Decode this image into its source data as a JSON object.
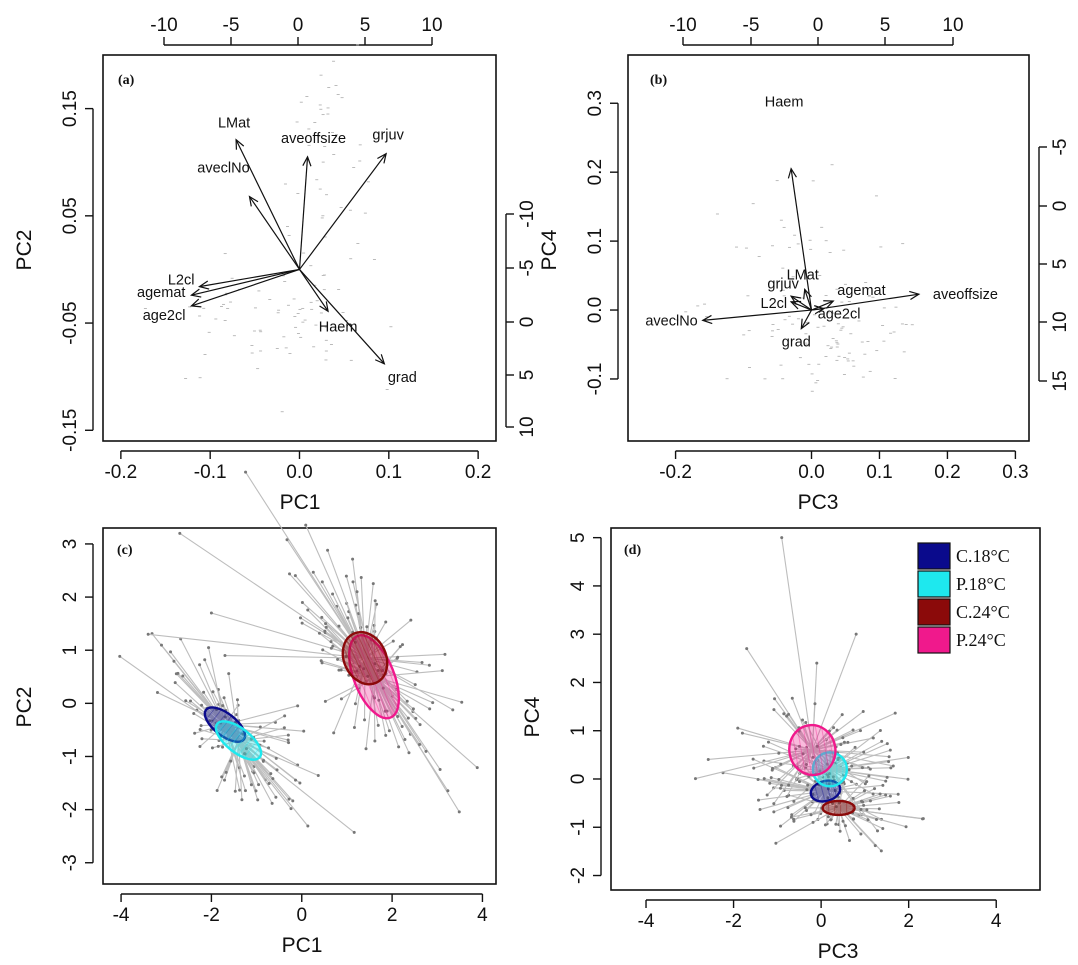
{
  "figure": {
    "panels": [
      "(a)",
      "(b)",
      "(c)",
      "(d)"
    ]
  },
  "chart_data": [
    {
      "type": "scatter",
      "subtype": "biplot",
      "panel": "(a)",
      "xlabel": "PC1",
      "ylabel": "PC2",
      "xlim": [
        -0.22,
        0.22
      ],
      "ylim": [
        -0.16,
        0.2
      ],
      "x_ticks": [
        "-0.2",
        "-0.1",
        "0.0",
        "0.1",
        "0.2"
      ],
      "y_ticks": [
        "-0.15",
        "-0.05",
        "0.05",
        "0.15"
      ],
      "top_ticks": [
        "-10",
        "-5",
        "0",
        "5",
        "10"
      ],
      "right_ticks": [
        "-10",
        "-5",
        "0",
        "5",
        "10"
      ],
      "loadings": [
        {
          "label": "LMat",
          "x": -0.071,
          "y": 0.121
        },
        {
          "label": "aveoffsize",
          "x": 0.009,
          "y": 0.105
        },
        {
          "label": "grjuv",
          "x": 0.097,
          "y": 0.108
        },
        {
          "label": "aveclNo",
          "x": -0.056,
          "y": 0.068
        },
        {
          "label": "L2cl",
          "x": -0.112,
          "y": -0.016
        },
        {
          "label": "agemat",
          "x": -0.121,
          "y": -0.024
        },
        {
          "label": "age2cl",
          "x": -0.121,
          "y": -0.034
        },
        {
          "label": "Haem",
          "x": 0.032,
          "y": -0.039
        },
        {
          "label": "grad",
          "x": 0.095,
          "y": -0.088
        }
      ]
    },
    {
      "type": "scatter",
      "subtype": "biplot",
      "panel": "(b)",
      "xlabel": "PC3",
      "ylabel": "PC4",
      "xlim": [
        -0.27,
        0.32
      ],
      "ylim": [
        -0.19,
        0.37
      ],
      "x_ticks": [
        "-0.2",
        "0.0",
        "0.1",
        "0.2",
        "0.3"
      ],
      "y_ticks": [
        "-0.1",
        "0.0",
        "0.1",
        "0.2",
        "0.3"
      ],
      "top_ticks": [
        "-10",
        "-5",
        "0",
        "5",
        "10"
      ],
      "right_ticks": [
        "-5",
        "0",
        "5",
        "10",
        "15"
      ],
      "loadings": [
        {
          "label": "Haem",
          "x": -0.03,
          "y": 0.205
        },
        {
          "label": "LMat",
          "x": -0.01,
          "y": 0.03
        },
        {
          "label": "grjuv",
          "x": -0.03,
          "y": 0.02
        },
        {
          "label": "L2cl",
          "x": -0.03,
          "y": 0.012
        },
        {
          "label": "agemat",
          "x": 0.032,
          "y": 0.013
        },
        {
          "label": "age2cl",
          "x": 0.018,
          "y": 0.002
        },
        {
          "label": "aveoffsize",
          "x": 0.158,
          "y": 0.023
        },
        {
          "label": "aveclNo",
          "x": -0.16,
          "y": -0.015
        },
        {
          "label": "grad",
          "x": -0.015,
          "y": -0.027
        }
      ]
    },
    {
      "type": "scatter",
      "subtype": "spider plot with 95% ellipses",
      "panel": "(c)",
      "xlabel": "PC1",
      "ylabel": "PC2",
      "xlim": [
        -4.4,
        4.3
      ],
      "ylim": [
        -3.4,
        3.3
      ],
      "x_ticks": [
        "-4",
        "-2",
        "0",
        "2",
        "4"
      ],
      "y_ticks": [
        "-3",
        "-2",
        "-1",
        "0",
        "1",
        "2",
        "3"
      ],
      "groups": [
        {
          "name": "C.18°C",
          "centroid": [
            -1.7,
            -0.4
          ]
        },
        {
          "name": "P.18°C",
          "centroid": [
            -1.4,
            -0.7
          ]
        },
        {
          "name": "C.24°C",
          "centroid": [
            1.4,
            0.85
          ]
        },
        {
          "name": "P.24°C",
          "centroid": [
            1.6,
            0.5
          ]
        }
      ]
    },
    {
      "type": "scatter",
      "subtype": "spider plot with 95% ellipses",
      "panel": "(d)",
      "xlabel": "PC3",
      "ylabel": "PC4",
      "xlim": [
        -4.8,
        5.0
      ],
      "ylim": [
        -2.3,
        5.2
      ],
      "x_ticks": [
        "-4",
        "-2",
        "0",
        "2",
        "4"
      ],
      "y_ticks": [
        "-2",
        "-1",
        "0",
        "1",
        "2",
        "3",
        "4",
        "5"
      ],
      "groups": [
        {
          "name": "C.18°C",
          "centroid": [
            0.1,
            -0.25
          ]
        },
        {
          "name": "P.18°C",
          "centroid": [
            0.2,
            0.2
          ]
        },
        {
          "name": "C.24°C",
          "centroid": [
            0.4,
            -0.6
          ]
        },
        {
          "name": "P.24°C",
          "centroid": [
            -0.2,
            0.6
          ]
        }
      ]
    }
  ],
  "legend": {
    "items": [
      {
        "label": "C.18°C",
        "color": "#0a0a8c"
      },
      {
        "label": "P.18°C",
        "color": "#1ee8ee"
      },
      {
        "label": "C.24°C",
        "color": "#8b0a0a"
      },
      {
        "label": "P.24°C",
        "color": "#f0198c"
      }
    ]
  },
  "colors": {
    "spider_lines": "#bdbdbd",
    "points": "#777777",
    "axis": "#111111"
  }
}
